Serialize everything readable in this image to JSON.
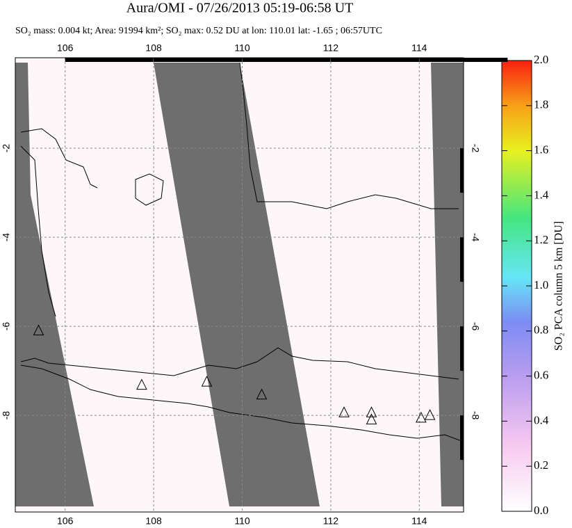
{
  "title": "Aura/OMI - 07/26/2013 05:19-06:58 UT",
  "subtitle": "SO₂ mass: 0.004 kt; Area: 91994 km²; SO₂ max: 0.52 DU at lon: 110.01 lat: -1.65 ; 06:57UTC",
  "map": {
    "xlim": [
      105,
      115
    ],
    "ylim": [
      0,
      -10.17
    ],
    "xticks": [
      106,
      108,
      110,
      112,
      114
    ],
    "yticks": [
      -2,
      -4,
      -6,
      -8
    ],
    "volcanoes": [
      [
        105.4,
        -6.1
      ],
      [
        107.73,
        -7.32
      ],
      [
        109.2,
        -7.25
      ],
      [
        110.44,
        -7.54
      ],
      [
        112.3,
        -7.94
      ],
      [
        112.92,
        -7.94
      ],
      [
        112.92,
        -8.1
      ],
      [
        114.04,
        -8.06
      ],
      [
        114.24,
        -8.0
      ]
    ]
  },
  "colorbar": {
    "label": "SO₂ PCA column 5 km [DU]",
    "lim": [
      0,
      2
    ],
    "ticks": [
      {
        "value": 0,
        "label": "0.0"
      },
      0.2,
      0.4,
      0.6,
      0.8,
      {
        "value": 1,
        "label": "1.0"
      },
      1.2,
      1.4,
      1.6,
      1.8,
      {
        "value": 2,
        "label": "2.0"
      }
    ]
  }
}
